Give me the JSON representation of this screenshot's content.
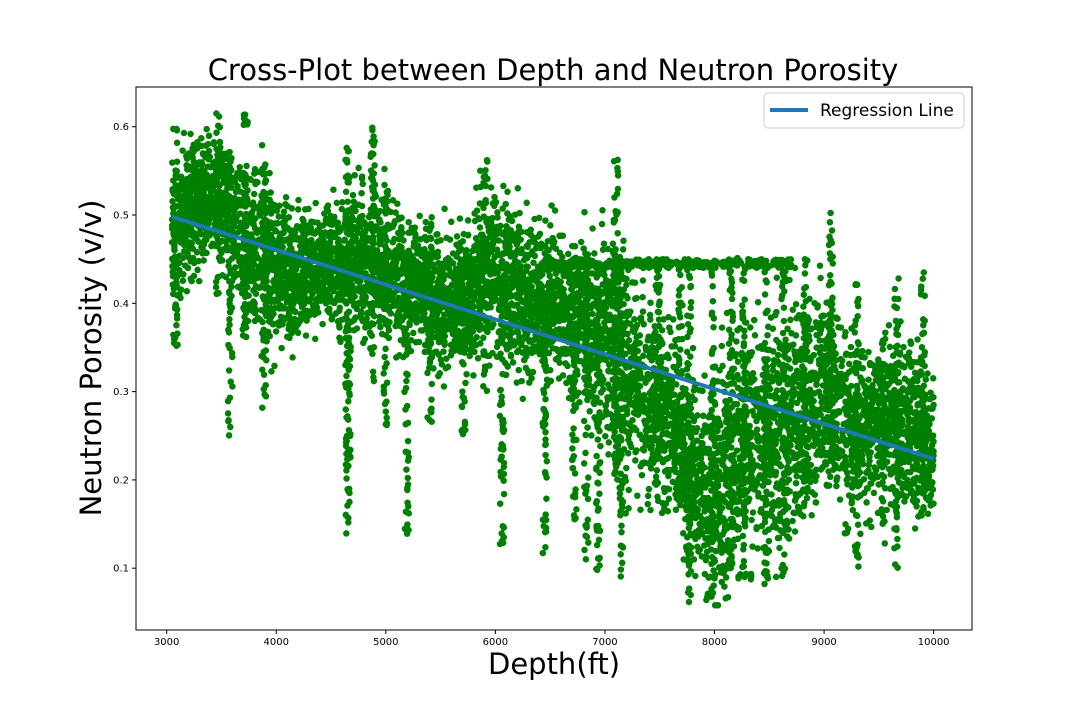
{
  "chart_data": {
    "type": "scatter",
    "title": "Cross-Plot between Depth and Neutron Porosity",
    "xlabel": "Depth(ft)",
    "ylabel": "Neutron Porosity (v/v)",
    "xlim": [
      2720,
      10350
    ],
    "ylim": [
      0.03,
      0.645
    ],
    "xticks": [
      3000,
      4000,
      5000,
      6000,
      7000,
      8000,
      9000,
      10000
    ],
    "yticks": [
      0.1,
      0.2,
      0.3,
      0.4,
      0.5,
      0.6
    ],
    "grid": false,
    "legend": {
      "location": "top-right",
      "entries": [
        "Regression Line"
      ]
    },
    "colors": {
      "points": "#008000",
      "regression": "#1f77b4"
    },
    "regression_line": {
      "name": "Regression Line",
      "x": [
        3050,
        10000
      ],
      "y": [
        0.498,
        0.224
      ]
    },
    "trend_profile": {
      "x": [
        3050,
        3300,
        3500,
        3700,
        3900,
        4100,
        4400,
        4700,
        5000,
        5300,
        5600,
        5800,
        6000,
        6200,
        6500,
        6800,
        7000,
        7200,
        7400,
        7600,
        7800,
        8000,
        8200,
        8400,
        8600,
        8800,
        9000,
        9200,
        9400,
        9600,
        9800,
        10000
      ],
      "y": [
        0.49,
        0.51,
        0.52,
        0.47,
        0.45,
        0.43,
        0.44,
        0.45,
        0.44,
        0.42,
        0.4,
        0.42,
        0.45,
        0.41,
        0.4,
        0.38,
        0.37,
        0.33,
        0.29,
        0.27,
        0.21,
        0.17,
        0.24,
        0.26,
        0.24,
        0.28,
        0.31,
        0.27,
        0.25,
        0.28,
        0.26,
        0.23
      ],
      "spread": [
        0.04,
        0.035,
        0.035,
        0.045,
        0.05,
        0.035,
        0.03,
        0.04,
        0.04,
        0.035,
        0.035,
        0.04,
        0.05,
        0.045,
        0.04,
        0.045,
        0.06,
        0.065,
        0.055,
        0.05,
        0.05,
        0.06,
        0.07,
        0.07,
        0.065,
        0.065,
        0.055,
        0.055,
        0.045,
        0.05,
        0.05,
        0.04
      ]
    },
    "vertical_streaks": [
      {
        "x": 3080,
        "y": [
          0.345,
          0.6
        ]
      },
      {
        "x": 3470,
        "y": [
          0.41,
          0.615
        ]
      },
      {
        "x": 3580,
        "y": [
          0.25,
          0.5
        ]
      },
      {
        "x": 3720,
        "y": [
          0.36,
          0.615
        ]
      },
      {
        "x": 3890,
        "y": [
          0.28,
          0.56
        ]
      },
      {
        "x": 4650,
        "y": [
          0.125,
          0.58
        ]
      },
      {
        "x": 4660,
        "y": [
          0.22,
          0.45
        ]
      },
      {
        "x": 4880,
        "y": [
          0.3,
          0.61
        ]
      },
      {
        "x": 5000,
        "y": [
          0.26,
          0.56
        ]
      },
      {
        "x": 5190,
        "y": [
          0.135,
          0.41
        ]
      },
      {
        "x": 5400,
        "y": [
          0.26,
          0.5
        ]
      },
      {
        "x": 5710,
        "y": [
          0.25,
          0.45
        ]
      },
      {
        "x": 5910,
        "y": [
          0.3,
          0.565
        ]
      },
      {
        "x": 6060,
        "y": [
          0.125,
          0.42
        ]
      },
      {
        "x": 6450,
        "y": [
          0.11,
          0.4
        ]
      },
      {
        "x": 6720,
        "y": [
          0.15,
          0.45
        ]
      },
      {
        "x": 6830,
        "y": [
          0.1,
          0.45
        ]
      },
      {
        "x": 6940,
        "y": [
          0.07,
          0.45
        ]
      },
      {
        "x": 7100,
        "y": [
          0.2,
          0.565
        ]
      },
      {
        "x": 7150,
        "y": [
          0.09,
          0.45
        ]
      },
      {
        "x": 7480,
        "y": [
          0.19,
          0.45
        ]
      },
      {
        "x": 7690,
        "y": [
          0.14,
          0.45
        ]
      },
      {
        "x": 7770,
        "y": [
          0.06,
          0.45
        ]
      },
      {
        "x": 7990,
        "y": [
          0.07,
          0.45
        ]
      },
      {
        "x": 8150,
        "y": [
          0.1,
          0.45
        ]
      },
      {
        "x": 8270,
        "y": [
          0.07,
          0.45
        ]
      },
      {
        "x": 8470,
        "y": [
          0.075,
          0.45
        ]
      },
      {
        "x": 8630,
        "y": [
          0.085,
          0.45
        ]
      },
      {
        "x": 8830,
        "y": [
          0.18,
          0.45
        ]
      },
      {
        "x": 9060,
        "y": [
          0.2,
          0.505
        ]
      },
      {
        "x": 9300,
        "y": [
          0.1,
          0.425
        ]
      },
      {
        "x": 9540,
        "y": [
          0.15,
          0.38
        ]
      },
      {
        "x": 9660,
        "y": [
          0.095,
          0.43
        ]
      },
      {
        "x": 9900,
        "y": [
          0.15,
          0.435
        ]
      }
    ],
    "point_count_approx": 9000
  }
}
